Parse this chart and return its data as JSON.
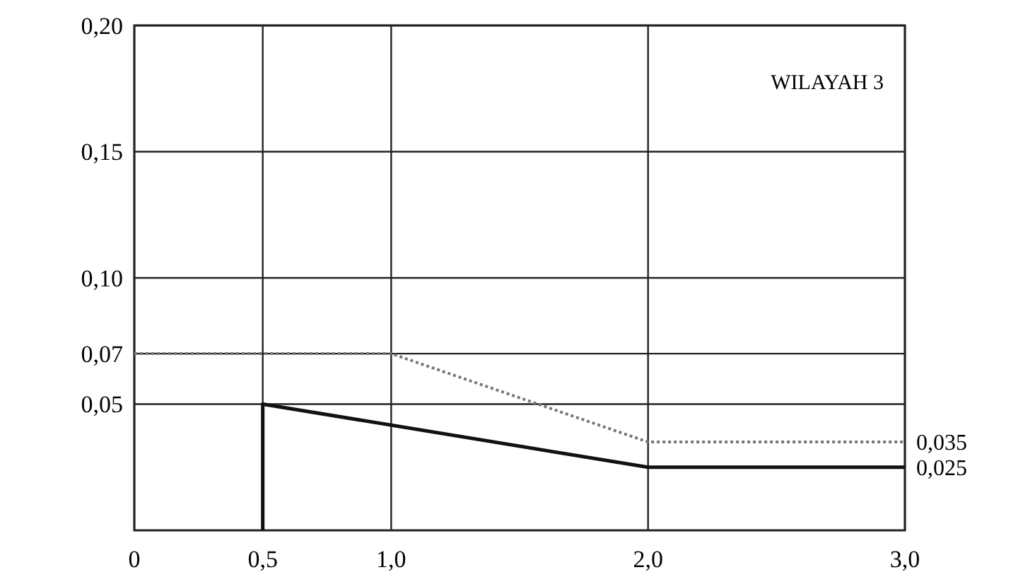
{
  "chart_data": {
    "type": "line",
    "title": "WILAYAH 3",
    "xlim": [
      0,
      3
    ],
    "xticks": [
      0,
      {
        "value": 0.5,
        "label": "0,5"
      },
      {
        "value": 1,
        "label": "1,0"
      },
      {
        "value": 2,
        "label": "2,0"
      },
      {
        "value": 3,
        "label": "3,0"
      }
    ],
    "ylim": [
      0,
      0.2
    ],
    "yticks": [
      {
        "value": 0.05,
        "label": "0,05"
      },
      {
        "value": 0.07,
        "label": "0,07"
      },
      {
        "value": 0.1,
        "label": "0,10"
      },
      {
        "value": 0.15,
        "label": "0,15"
      },
      {
        "value": 0.2,
        "label": "0,20"
      }
    ],
    "grid": true,
    "series": [
      {
        "color": "#777777",
        "line_style": "dotted",
        "x": [
          0,
          1,
          2,
          3
        ],
        "values": [
          0.07,
          0.07,
          0.035,
          0.035
        ]
      },
      {
        "color": "#111111",
        "line_style": "solid",
        "x": [
          0.5,
          0.5,
          2,
          3
        ],
        "values": [
          0,
          0.05,
          0.025,
          0.025
        ]
      }
    ],
    "annotations": [
      {
        "text": "0,035",
        "x": 3,
        "y": 0.035
      },
      {
        "text": "0,025",
        "x": 3,
        "y": 0.025
      }
    ]
  }
}
